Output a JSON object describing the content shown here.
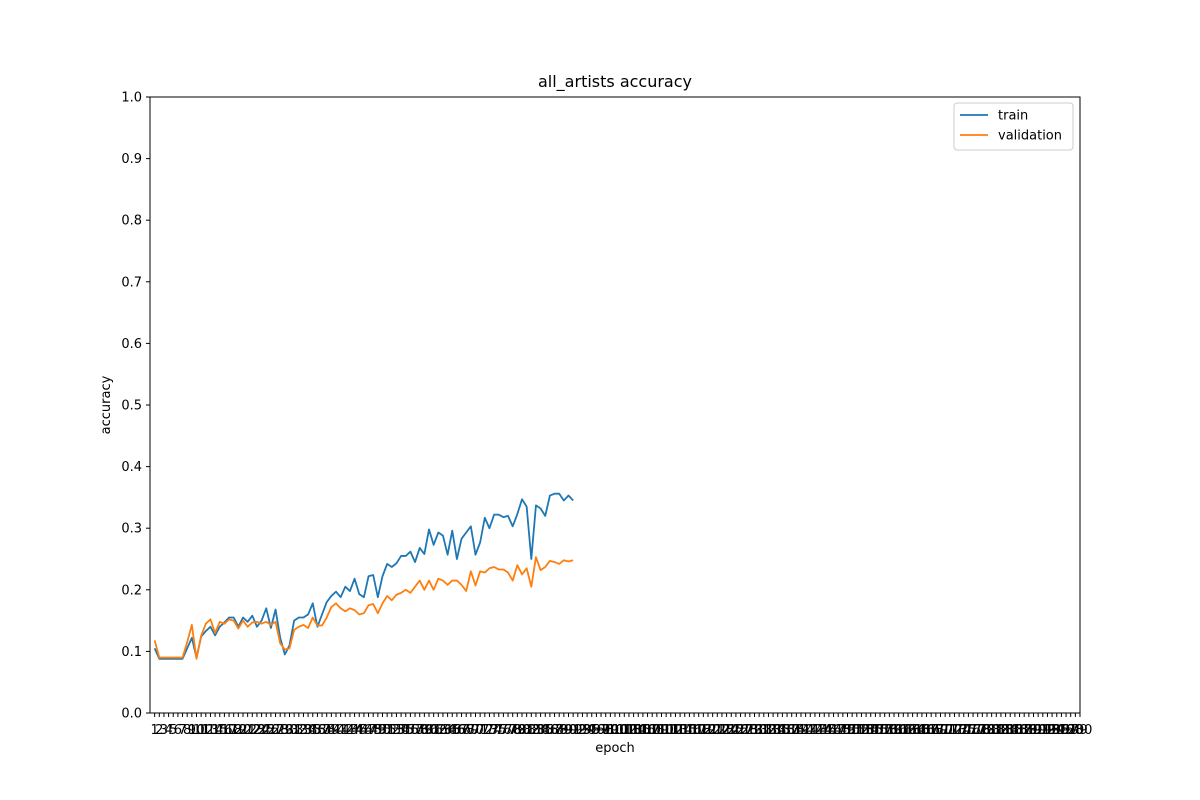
{
  "chart_data": {
    "type": "line",
    "title": "all_artists accuracy",
    "xlabel": "epoch",
    "ylabel": "accuracy",
    "xlim": [
      0,
      200
    ],
    "ylim": [
      0.0,
      1.0
    ],
    "x_ticks": [
      1,
      2,
      3,
      4,
      5,
      6,
      7,
      8,
      9,
      10,
      11,
      12,
      13,
      14,
      15,
      16,
      17,
      18,
      19,
      20,
      21,
      22,
      23,
      24,
      25,
      26,
      27,
      28,
      29,
      30,
      31,
      32,
      33,
      34,
      35,
      36,
      37,
      38,
      39,
      40,
      41,
      42,
      43,
      44,
      45,
      46,
      47,
      48,
      49,
      50,
      51,
      52,
      53,
      54,
      55,
      56,
      57,
      58,
      59,
      60,
      61,
      62,
      63,
      64,
      65,
      66,
      67,
      68,
      69,
      70,
      71,
      72,
      73,
      74,
      75,
      76,
      77,
      78,
      79,
      80,
      81,
      82,
      83,
      84,
      85,
      86,
      87,
      88,
      89,
      90,
      91,
      92,
      93,
      94,
      95,
      96,
      97,
      98,
      99,
      100,
      101,
      102,
      103,
      104,
      105,
      106,
      107,
      108,
      109,
      110,
      111,
      112,
      113,
      114,
      115,
      116,
      117,
      118,
      119,
      120,
      121,
      122,
      123,
      124,
      125,
      126,
      127,
      128,
      129,
      130,
      131,
      132,
      133,
      134,
      135,
      136,
      137,
      138,
      139,
      140,
      141,
      142,
      143,
      144,
      145,
      146,
      147,
      148,
      149,
      150,
      151,
      152,
      153,
      154,
      155,
      156,
      157,
      158,
      159,
      160,
      161,
      162,
      163,
      164,
      165,
      166,
      167,
      168,
      169,
      170,
      171,
      172,
      173,
      174,
      175,
      176,
      177,
      178,
      179,
      180,
      181,
      182,
      183,
      184,
      185,
      186,
      187,
      188,
      189,
      190,
      191,
      192,
      193,
      194,
      195,
      196,
      197,
      198,
      199,
      200
    ],
    "y_ticks": [
      0.0,
      0.1,
      0.2,
      0.3,
      0.4,
      0.5,
      0.6,
      0.7,
      0.8,
      0.9,
      1.0
    ],
    "y_tick_labels": [
      "0.0",
      "0.1",
      "0.2",
      "0.3",
      "0.4",
      "0.5",
      "0.6",
      "0.7",
      "0.8",
      "0.9",
      "1.0"
    ],
    "legend_position": "top-right",
    "grid": false,
    "series": [
      {
        "name": "train",
        "color": "#1f77b4",
        "x": [
          1,
          2,
          3,
          4,
          5,
          6,
          7,
          8,
          9,
          10,
          11,
          12,
          13,
          14,
          15,
          16,
          17,
          18,
          19,
          20,
          21,
          22,
          23,
          24,
          25,
          26,
          27,
          28,
          29,
          30,
          31,
          32,
          33,
          34,
          35,
          36,
          37,
          38,
          39,
          40,
          41,
          42,
          43,
          44,
          45,
          46,
          47,
          48,
          49,
          50,
          51,
          52,
          53,
          54,
          55,
          56,
          57,
          58,
          59,
          60,
          61,
          62,
          63,
          64,
          65,
          66,
          67,
          68,
          69,
          70,
          71,
          72,
          73,
          74,
          75,
          76,
          77,
          78,
          79,
          80,
          81,
          82,
          83,
          84,
          85,
          86,
          87,
          88,
          89,
          90,
          91
        ],
        "values": [
          0.105,
          0.088,
          0.088,
          0.088,
          0.088,
          0.088,
          0.088,
          0.105,
          0.122,
          0.09,
          0.124,
          0.133,
          0.14,
          0.126,
          0.14,
          0.147,
          0.155,
          0.155,
          0.14,
          0.155,
          0.148,
          0.158,
          0.14,
          0.15,
          0.17,
          0.138,
          0.168,
          0.122,
          0.095,
          0.11,
          0.15,
          0.155,
          0.155,
          0.16,
          0.178,
          0.14,
          0.16,
          0.18,
          0.19,
          0.197,
          0.188,
          0.205,
          0.198,
          0.218,
          0.193,
          0.188,
          0.222,
          0.224,
          0.188,
          0.222,
          0.242,
          0.237,
          0.243,
          0.255,
          0.255,
          0.262,
          0.245,
          0.268,
          0.258,
          0.298,
          0.273,
          0.293,
          0.288,
          0.257,
          0.296,
          0.25,
          0.283,
          0.293,
          0.303,
          0.257,
          0.277,
          0.317,
          0.3,
          0.322,
          0.322,
          0.318,
          0.32,
          0.303,
          0.323,
          0.347,
          0.335,
          0.25,
          0.337,
          0.332,
          0.32,
          0.353,
          0.356,
          0.356,
          0.345,
          0.353,
          0.345
        ]
      },
      {
        "name": "validation",
        "color": "#ff7f0e",
        "x": [
          1,
          2,
          3,
          4,
          5,
          6,
          7,
          8,
          9,
          10,
          11,
          12,
          13,
          14,
          15,
          16,
          17,
          18,
          19,
          20,
          21,
          22,
          23,
          24,
          25,
          26,
          27,
          28,
          29,
          30,
          31,
          32,
          33,
          34,
          35,
          36,
          37,
          38,
          39,
          40,
          41,
          42,
          43,
          44,
          45,
          46,
          47,
          48,
          49,
          50,
          51,
          52,
          53,
          54,
          55,
          56,
          57,
          58,
          59,
          60,
          61,
          62,
          63,
          64,
          65,
          66,
          67,
          68,
          69,
          70,
          71,
          72,
          73,
          74,
          75,
          76,
          77,
          78,
          79,
          80,
          81,
          82,
          83,
          84,
          85,
          86,
          87,
          88,
          89,
          90,
          91
        ],
        "values": [
          0.118,
          0.09,
          0.09,
          0.09,
          0.09,
          0.09,
          0.09,
          0.115,
          0.143,
          0.088,
          0.125,
          0.145,
          0.152,
          0.13,
          0.148,
          0.145,
          0.152,
          0.15,
          0.137,
          0.15,
          0.14,
          0.147,
          0.148,
          0.145,
          0.148,
          0.143,
          0.148,
          0.113,
          0.103,
          0.105,
          0.135,
          0.14,
          0.143,
          0.138,
          0.155,
          0.142,
          0.142,
          0.155,
          0.172,
          0.178,
          0.17,
          0.165,
          0.17,
          0.167,
          0.16,
          0.162,
          0.175,
          0.177,
          0.162,
          0.178,
          0.19,
          0.183,
          0.192,
          0.195,
          0.2,
          0.195,
          0.205,
          0.215,
          0.2,
          0.215,
          0.2,
          0.218,
          0.215,
          0.208,
          0.215,
          0.215,
          0.208,
          0.198,
          0.23,
          0.207,
          0.23,
          0.228,
          0.235,
          0.237,
          0.233,
          0.233,
          0.228,
          0.215,
          0.24,
          0.225,
          0.235,
          0.205,
          0.253,
          0.232,
          0.237,
          0.247,
          0.245,
          0.242,
          0.248,
          0.246,
          0.248
        ]
      }
    ]
  }
}
